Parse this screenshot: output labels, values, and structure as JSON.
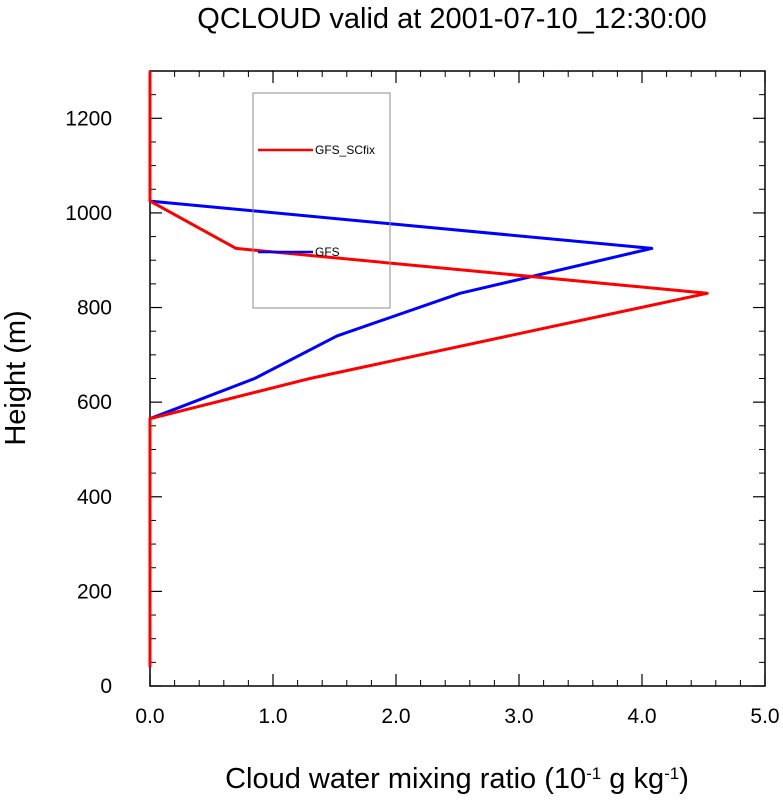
{
  "chart_data": {
    "type": "line",
    "title": "QCLOUD valid at 2001-07-10_12:30:00",
    "xlabel": {
      "prefix": "Cloud water mixing ratio (10",
      "sup1": "-1",
      "middle": " g kg",
      "sup2": "-1",
      "suffix": ")"
    },
    "ylabel": "Height (m)",
    "xlim": [
      0,
      5
    ],
    "ylim": [
      0,
      1300
    ],
    "xticks": [
      0,
      1,
      2,
      3,
      4,
      5
    ],
    "xtick_labels": [
      "0.0",
      "1.0",
      "2.0",
      "3.0",
      "4.0",
      "5.0"
    ],
    "yticks": [
      0,
      200,
      400,
      600,
      800,
      1000,
      1200
    ],
    "ytick_labels": [
      "0",
      "200",
      "400",
      "600",
      "800",
      "1000",
      "1200"
    ],
    "grid": false,
    "legend_position": "upper-left-inside",
    "series": [
      {
        "name": "GFS",
        "color": "#0000ff",
        "x": [
          0,
          0,
          0,
          0,
          0,
          0,
          0,
          0,
          0,
          0.85,
          1.52,
          2.52,
          4.08,
          0,
          0,
          0
        ],
        "y": [
          40,
          100,
          200,
          300,
          400,
          450,
          500,
          540,
          565,
          650,
          740,
          830,
          925,
          1025,
          1150,
          1300
        ]
      },
      {
        "name": "GFS_SCfix",
        "color": "#ff0000",
        "x": [
          0,
          0,
          0,
          0,
          0,
          0,
          0,
          0,
          0,
          1.3,
          4.53,
          0.7,
          0,
          0,
          0
        ],
        "y": [
          40,
          100,
          200,
          300,
          400,
          450,
          500,
          540,
          565,
          650,
          830,
          925,
          1025,
          1150,
          1300
        ]
      }
    ],
    "legend": {
      "entries": [
        {
          "label": "GFS_SCfix",
          "color": "#ff0000"
        },
        {
          "label": "GFS",
          "color": "#0000ff"
        }
      ]
    }
  }
}
